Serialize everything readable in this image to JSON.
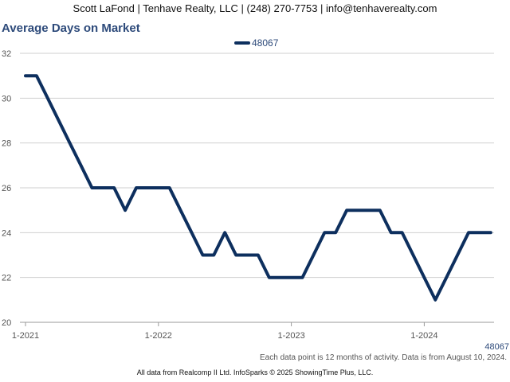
{
  "header": {
    "text": "Scott LaFond | Tenhave Realty, LLC | (248) 270-7753 | info@tenhaverealty.com"
  },
  "chart_data": {
    "type": "line",
    "title": "Average Days on Market",
    "xlabel": "",
    "ylabel": "",
    "ylim": [
      20,
      32
    ],
    "yticks": [
      20,
      22,
      24,
      26,
      28,
      30,
      32
    ],
    "xtick_labels": [
      "1-2021",
      "1-2022",
      "1-2023",
      "1-2024"
    ],
    "x_range": [
      "2021-01",
      "2024-07"
    ],
    "grid": true,
    "legend_position": "top-center",
    "series": [
      {
        "name": "48067",
        "color": "#0d2f5e",
        "x": [
          "2021-01",
          "2021-02",
          "2021-03",
          "2021-04",
          "2021-05",
          "2021-06",
          "2021-07",
          "2021-08",
          "2021-09",
          "2021-10",
          "2021-11",
          "2021-12",
          "2022-01",
          "2022-02",
          "2022-03",
          "2022-04",
          "2022-05",
          "2022-06",
          "2022-07",
          "2022-08",
          "2022-09",
          "2022-10",
          "2022-11",
          "2022-12",
          "2023-01",
          "2023-02",
          "2023-03",
          "2023-04",
          "2023-05",
          "2023-06",
          "2023-07",
          "2023-08",
          "2023-09",
          "2023-10",
          "2023-11",
          "2023-12",
          "2024-01",
          "2024-02",
          "2024-03",
          "2024-04",
          "2024-05",
          "2024-06",
          "2024-07"
        ],
        "values": [
          31,
          31,
          30,
          29,
          28,
          27,
          26,
          26,
          26,
          25,
          26,
          26,
          26,
          26,
          25,
          24,
          23,
          23,
          24,
          23,
          23,
          23,
          22,
          22,
          22,
          22,
          23,
          24,
          24,
          25,
          25,
          25,
          25,
          24,
          24,
          23,
          22,
          21,
          22,
          23,
          24,
          24,
          24
        ]
      }
    ]
  },
  "footnote": "Each data point is 12 months of activity. Data is from August 10, 2024.",
  "footer": "All data from Realcomp II Ltd. InfoSparks © 2025 ShowingTime Plus, LLC."
}
